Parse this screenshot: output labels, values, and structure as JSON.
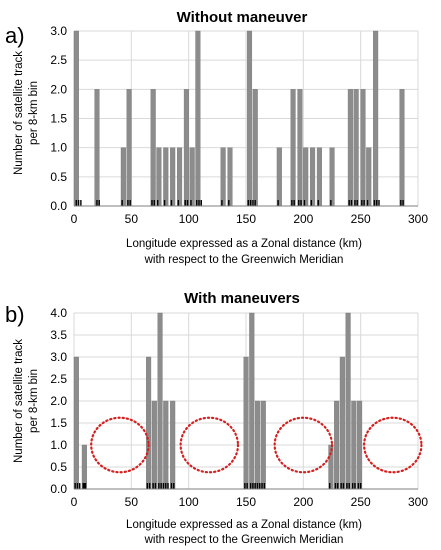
{
  "chart_data": [
    {
      "type": "bar",
      "panel_label": "a)",
      "title": "Without maneuver",
      "xlabel_lines": [
        "Longitude expressed as a Zonal distance (km)",
        "with respect to the Greenwich Meridian"
      ],
      "ylabel_lines": [
        "Number of satellite track",
        "per 8-km bin"
      ],
      "xlim": [
        0,
        300
      ],
      "ylim": [
        0,
        3
      ],
      "xticks": [
        "0",
        "50",
        "100",
        "150",
        "200",
        "250",
        "300"
      ],
      "yticks": [
        "0.0",
        "0.5",
        "1.0",
        "1.5",
        "2.0",
        "2.5",
        "3.0"
      ],
      "grid": true,
      "bar_color": "#8c8c8c",
      "bin_width_km": 4.1,
      "bins": [
        {
          "x": 0,
          "value": 3
        },
        {
          "x": 18,
          "value": 2
        },
        {
          "x": 41,
          "value": 1
        },
        {
          "x": 46,
          "value": 2
        },
        {
          "x": 67,
          "value": 2
        },
        {
          "x": 72,
          "value": 1
        },
        {
          "x": 78,
          "value": 1
        },
        {
          "x": 84,
          "value": 1
        },
        {
          "x": 90,
          "value": 1
        },
        {
          "x": 96,
          "value": 2
        },
        {
          "x": 101,
          "value": 1
        },
        {
          "x": 106,
          "value": 3
        },
        {
          "x": 128,
          "value": 1
        },
        {
          "x": 134,
          "value": 1
        },
        {
          "x": 151,
          "value": 3
        },
        {
          "x": 156,
          "value": 2
        },
        {
          "x": 177,
          "value": 1
        },
        {
          "x": 189,
          "value": 2
        },
        {
          "x": 195,
          "value": 2
        },
        {
          "x": 200,
          "value": 1
        },
        {
          "x": 206,
          "value": 1
        },
        {
          "x": 212,
          "value": 1
        },
        {
          "x": 223,
          "value": 1
        },
        {
          "x": 239,
          "value": 2
        },
        {
          "x": 244,
          "value": 2
        },
        {
          "x": 250,
          "value": 2
        },
        {
          "x": 255,
          "value": 1
        },
        {
          "x": 261,
          "value": 3
        },
        {
          "x": 284,
          "value": 2
        }
      ],
      "track_positions": [
        2,
        4,
        6,
        20,
        22,
        42,
        47,
        49,
        68,
        70,
        73,
        79,
        85,
        91,
        97,
        99,
        102,
        107,
        109,
        111,
        129,
        135,
        152,
        154,
        156,
        158,
        178,
        190,
        192,
        196,
        198,
        201,
        207,
        213,
        224,
        240,
        242,
        245,
        247,
        251,
        253,
        256,
        262,
        264,
        266,
        285,
        287
      ]
    },
    {
      "type": "bar",
      "panel_label": "b)",
      "title": "With maneuvers",
      "xlabel_lines": [
        "Longitude expressed as a Zonal distance (km)",
        "with respect to the Greenwich Meridian"
      ],
      "ylabel_lines": [
        "Number of satellite track",
        "per 8-km bin"
      ],
      "xlim": [
        0,
        300
      ],
      "ylim": [
        0,
        4
      ],
      "xticks": [
        "0",
        "50",
        "100",
        "150",
        "200",
        "250",
        "300"
      ],
      "yticks": [
        "0.0",
        "0.5",
        "1.0",
        "1.5",
        "2.0",
        "2.5",
        "3.0",
        "3.5",
        "4.0"
      ],
      "grid": true,
      "bar_color": "#8c8c8c",
      "bin_width_km": 4.1,
      "bins": [
        {
          "x": 0,
          "value": 3
        },
        {
          "x": 7,
          "value": 1
        },
        {
          "x": 63,
          "value": 3
        },
        {
          "x": 68,
          "value": 2
        },
        {
          "x": 73,
          "value": 4
        },
        {
          "x": 78,
          "value": 2
        },
        {
          "x": 84,
          "value": 2
        },
        {
          "x": 148,
          "value": 3
        },
        {
          "x": 153,
          "value": 4
        },
        {
          "x": 158,
          "value": 2
        },
        {
          "x": 163,
          "value": 2
        },
        {
          "x": 222,
          "value": 1
        },
        {
          "x": 227,
          "value": 2
        },
        {
          "x": 232,
          "value": 3
        },
        {
          "x": 237,
          "value": 4
        },
        {
          "x": 242,
          "value": 2
        },
        {
          "x": 247,
          "value": 2
        }
      ],
      "track_positions": [
        1,
        3,
        5,
        8,
        9,
        10,
        64,
        66,
        69,
        71,
        74,
        76,
        78,
        80,
        82,
        85,
        87,
        149,
        151,
        154,
        156,
        158,
        160,
        162,
        164,
        166,
        223,
        228,
        230,
        233,
        235,
        238,
        240,
        243,
        245,
        248,
        250
      ],
      "highlight_ellipses": [
        {
          "center_x": 40,
          "center_value": 1.0,
          "half_width": 25,
          "half_height": 0.62
        },
        {
          "center_x": 118,
          "center_value": 1.0,
          "half_width": 25,
          "half_height": 0.62
        },
        {
          "center_x": 200,
          "center_value": 1.0,
          "half_width": 25,
          "half_height": 0.62
        },
        {
          "center_x": 278,
          "center_value": 1.0,
          "half_width": 25,
          "half_height": 0.62
        }
      ],
      "highlight_color": "#d62020"
    }
  ]
}
